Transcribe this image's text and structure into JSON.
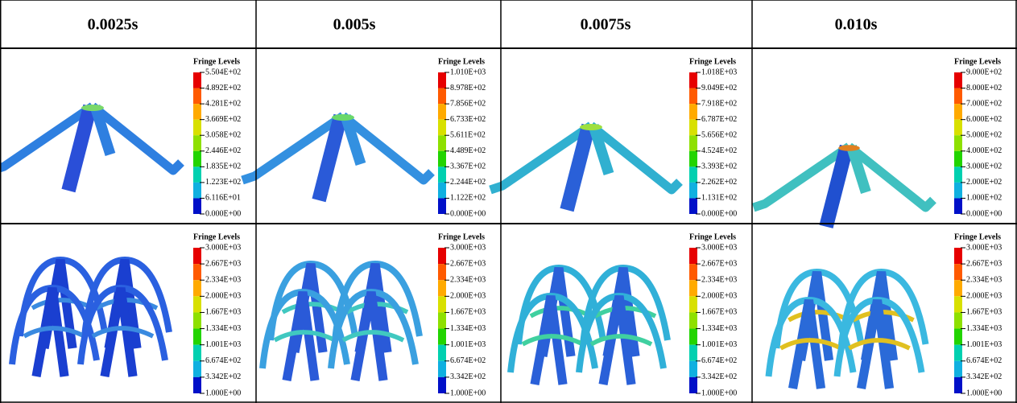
{
  "header": {
    "columns": [
      "0.0025s",
      "0.005s",
      "0.0075s",
      "0.010s"
    ]
  },
  "rows": [
    [
      {
        "legend": {
          "title": "Fringe Levels",
          "labels": [
            "5.504E+02",
            "4.892E+02",
            "4.281E+02",
            "3.669E+02",
            "3.058E+02",
            "2.446E+02",
            "1.835E+02",
            "1.223E+02",
            "6.116E+01",
            "0.000E+00"
          ]
        }
      },
      {
        "legend": {
          "title": "Fringe Levels",
          "labels": [
            "1.010E+03",
            "8.978E+02",
            "7.856E+02",
            "6.733E+02",
            "5.611E+02",
            "4.489E+02",
            "3.367E+02",
            "2.244E+02",
            "1.122E+02",
            "0.000E+00"
          ]
        }
      },
      {
        "legend": {
          "title": "Fringe Levels",
          "labels": [
            "1.018E+03",
            "9.049E+02",
            "7.918E+02",
            "6.787E+02",
            "5.656E+02",
            "4.524E+02",
            "3.393E+02",
            "2.262E+02",
            "1.131E+02",
            "0.000E+00"
          ]
        }
      },
      {
        "legend": {
          "title": "Fringe Levels",
          "labels": [
            "9.000E+02",
            "8.000E+02",
            "7.000E+02",
            "6.000E+02",
            "5.000E+02",
            "4.000E+02",
            "3.000E+02",
            "2.000E+02",
            "1.000E+02",
            "0.000E+00"
          ]
        }
      }
    ],
    [
      {
        "legend": {
          "title": "Fringe Levels",
          "labels": [
            "3.000E+03",
            "2.667E+03",
            "2.334E+03",
            "2.000E+03",
            "1.667E+03",
            "1.334E+03",
            "1.001E+03",
            "6.674E+02",
            "3.342E+02",
            "1.000E+00"
          ]
        }
      },
      {
        "legend": {
          "title": "Fringe Levels",
          "labels": [
            "3.000E+03",
            "2.667E+03",
            "2.334E+03",
            "2.000E+03",
            "1.667E+03",
            "1.334E+03",
            "1.001E+03",
            "6.674E+02",
            "3.342E+02",
            "1.000E+00"
          ]
        }
      },
      {
        "legend": {
          "title": "Fringe Levels",
          "labels": [
            "3.000E+03",
            "2.667E+03",
            "2.334E+03",
            "2.000E+03",
            "1.667E+03",
            "1.334E+03",
            "1.001E+03",
            "6.674E+02",
            "3.342E+02",
            "1.000E+00"
          ]
        }
      },
      {
        "legend": {
          "title": "Fringe Levels",
          "labels": [
            "3.000E+03",
            "2.667E+03",
            "2.334E+03",
            "2.000E+03",
            "1.667E+03",
            "1.334E+03",
            "1.001E+03",
            "6.674E+02",
            "3.342E+02",
            "1.000E+00"
          ]
        }
      }
    ]
  ]
}
